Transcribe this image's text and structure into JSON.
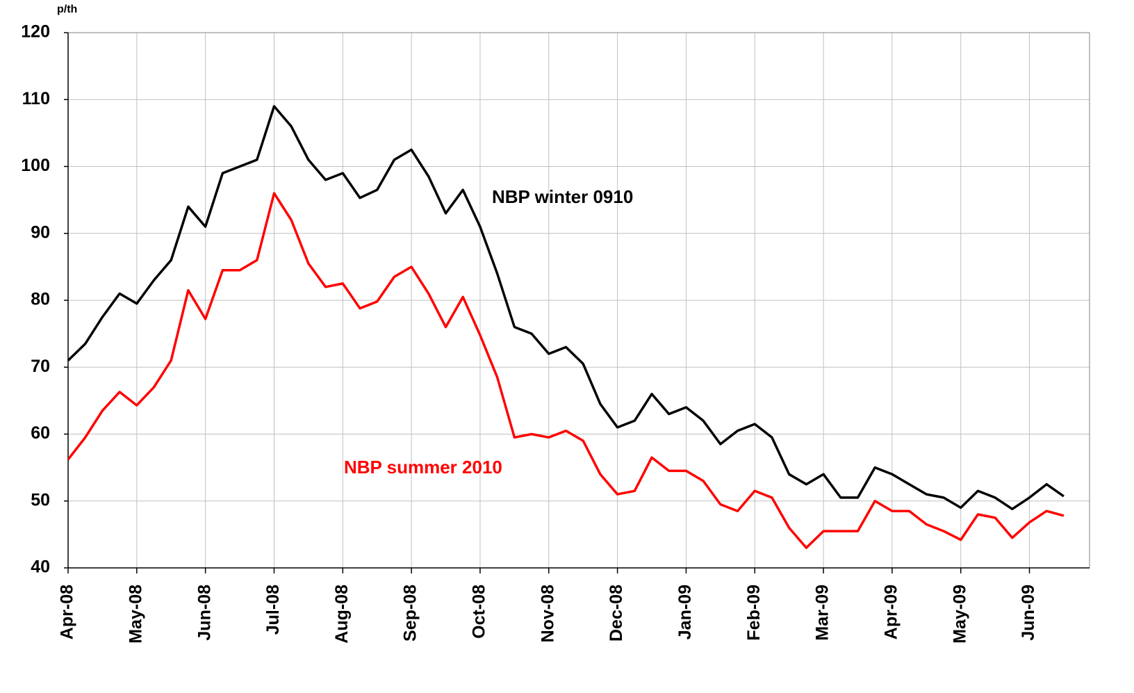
{
  "chart_data": {
    "type": "line",
    "y_label": "p/th",
    "categories": [
      "Apr-08",
      null,
      null,
      null,
      "May-08",
      null,
      null,
      null,
      "Jun-08",
      null,
      null,
      null,
      "Jul-08",
      null,
      null,
      null,
      "Aug-08",
      null,
      null,
      null,
      "Sep-08",
      null,
      null,
      null,
      "Oct-08",
      null,
      null,
      null,
      "Nov-08",
      null,
      null,
      null,
      "Dec-08",
      null,
      null,
      null,
      "Jan-09",
      null,
      null,
      null,
      "Feb-09",
      null,
      null,
      null,
      "Mar-09",
      null,
      null,
      null,
      "Apr-09",
      null,
      null,
      null,
      "May-09",
      null,
      null,
      null,
      "Jun-09",
      null,
      null
    ],
    "series": [
      {
        "name": "NBP winter 0910",
        "color": "#000000",
        "values": [
          71,
          73.5,
          77.5,
          81,
          79.5,
          83,
          86,
          94,
          91,
          99,
          100,
          101,
          109,
          106,
          101,
          98,
          99,
          95.3,
          96.5,
          101,
          102.5,
          98.5,
          93,
          96.5,
          91,
          84,
          76,
          75,
          72,
          73,
          70.5,
          64.5,
          61,
          62,
          66,
          63,
          64,
          62,
          58.5,
          60.5,
          61.5,
          59.5,
          54,
          52.5,
          54,
          50.5,
          50.5,
          55,
          54,
          52.5,
          51,
          50.5,
          49,
          51.5,
          50.5,
          48.8,
          50.5,
          52.5,
          50.7
        ]
      },
      {
        "name": "NBP summer 2010",
        "color": "#ff0000",
        "values": [
          56.2,
          59.5,
          63.5,
          66.3,
          64.3,
          67,
          71,
          81.5,
          77.2,
          84.5,
          84.5,
          86,
          96,
          92,
          85.5,
          82,
          82.5,
          78.8,
          79.8,
          83.5,
          85,
          81,
          76,
          80.5,
          74.8,
          68.5,
          59.5,
          60,
          59.5,
          60.5,
          59,
          54,
          51,
          51.5,
          56.5,
          54.5,
          54.5,
          53,
          49.5,
          48.5,
          51.5,
          50.5,
          46,
          43,
          45.5,
          45.5,
          45.5,
          50,
          48.5,
          48.5,
          46.5,
          45.5,
          44.2,
          48,
          47.5,
          44.5,
          46.8,
          48.5,
          47.8
        ]
      }
    ],
    "ylim": [
      40,
      120
    ],
    "yticks": [
      40,
      50,
      60,
      70,
      80,
      90,
      100,
      110,
      120
    ],
    "grid": true
  }
}
